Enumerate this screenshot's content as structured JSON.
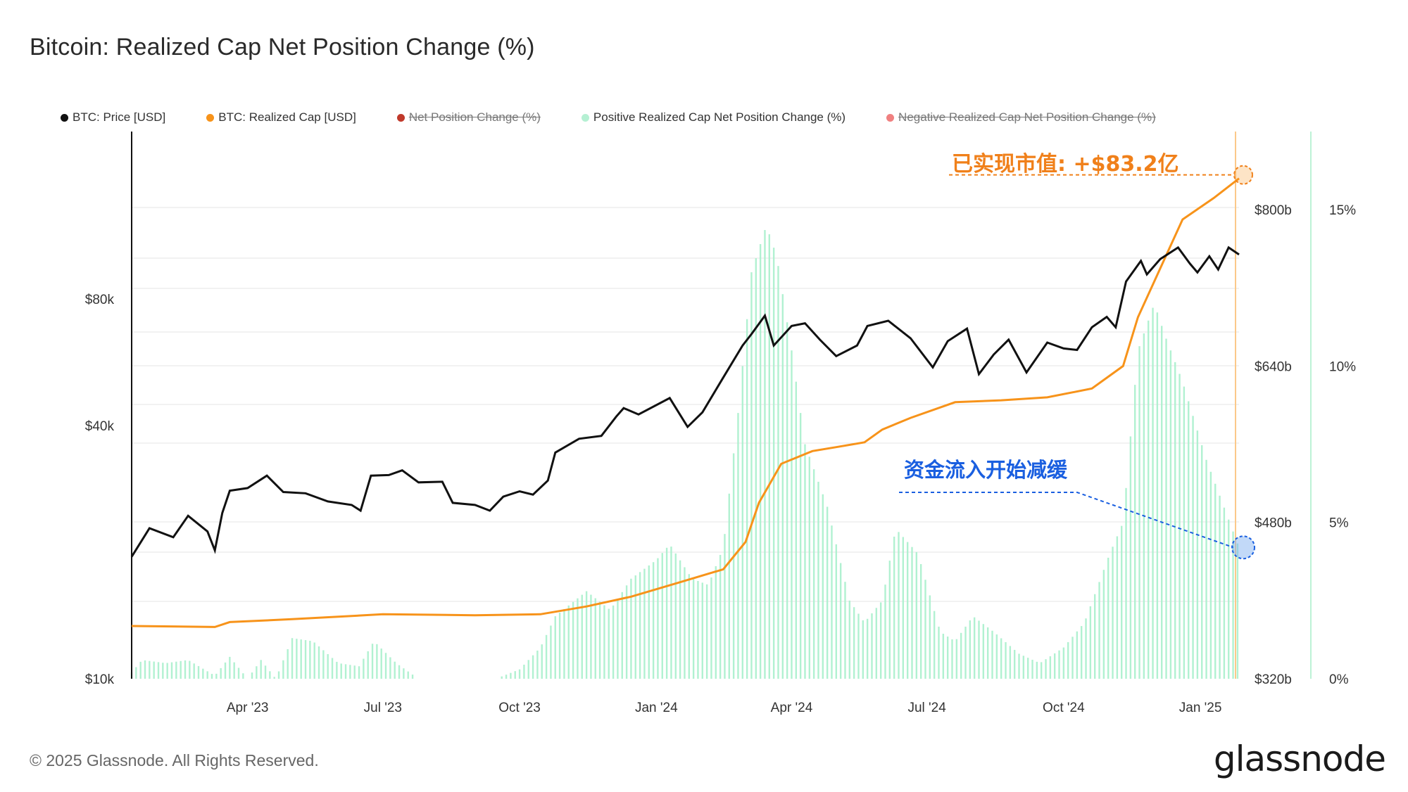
{
  "title": "Bitcoin: Realized Cap Net Position Change (%)",
  "legend": [
    {
      "label": "BTC: Price [USD]",
      "color": "#111111",
      "active": true
    },
    {
      "label": "BTC: Realized Cap [USD]",
      "color": "#f7931a",
      "active": true
    },
    {
      "label": "Net Position Change (%)",
      "color": "#c0392b",
      "active": false
    },
    {
      "label": "Positive Realized Cap Net Position Change (%)",
      "color": "#a8f0cc",
      "active": true
    },
    {
      "label": "Negative Realized Cap Net Position Change (%)",
      "color": "#f08080",
      "active": false
    }
  ],
  "annotations": {
    "realized_cap": "已实现市值: +$83.2亿",
    "inflow_slowing": "资金流入开始减缓"
  },
  "footer": "© 2025 Glassnode. All Rights Reserved.",
  "logo": "glassnode",
  "colors": {
    "price": "#111111",
    "realized_cap": "#f7931a",
    "positive_change": "#a8f0cc",
    "annotation_orange": "#f0801a",
    "annotation_blue": "#1a5fe0"
  },
  "chart_data": {
    "type": "line",
    "x_ticks": [
      "Apr '23",
      "Jul '23",
      "Oct '23",
      "Jan '24",
      "Apr '24",
      "Jul '24",
      "Oct '24",
      "Jan '25"
    ],
    "x_range": [
      "2023-01-13",
      "2025-01-27"
    ],
    "axes": {
      "price": {
        "position": "left",
        "scale": "log",
        "ticks": [
          "$10k",
          "$40k",
          "$80k"
        ],
        "range": [
          10000,
          200000
        ]
      },
      "realized_cap": {
        "position": "right",
        "scale": "linear",
        "ticks": [
          "$320b",
          "$480b",
          "$640b",
          "$800b"
        ],
        "range": [
          320,
          880
        ]
      },
      "net_change_pct": {
        "position": "far-right",
        "scale": "linear",
        "ticks": [
          "0%",
          "5%",
          "10%",
          "15%"
        ],
        "range": [
          0,
          17.5
        ]
      }
    },
    "series": [
      {
        "name": "BTC: Price [USD]",
        "axis": "price",
        "points": [
          [
            "2023-01-13",
            19500
          ],
          [
            "2023-01-25",
            22800
          ],
          [
            "2023-02-10",
            21700
          ],
          [
            "2023-02-20",
            24400
          ],
          [
            "2023-03-05",
            22400
          ],
          [
            "2023-03-10",
            20200
          ],
          [
            "2023-03-15",
            24800
          ],
          [
            "2023-03-20",
            28000
          ],
          [
            "2023-04-01",
            28400
          ],
          [
            "2023-04-14",
            30400
          ],
          [
            "2023-04-25",
            27800
          ],
          [
            "2023-05-10",
            27600
          ],
          [
            "2023-05-25",
            26400
          ],
          [
            "2023-06-10",
            25900
          ],
          [
            "2023-06-16",
            25100
          ],
          [
            "2023-06-23",
            30400
          ],
          [
            "2023-07-05",
            30500
          ],
          [
            "2023-07-14",
            31300
          ],
          [
            "2023-07-25",
            29300
          ],
          [
            "2023-08-10",
            29400
          ],
          [
            "2023-08-17",
            26200
          ],
          [
            "2023-09-01",
            25900
          ],
          [
            "2023-09-11",
            25100
          ],
          [
            "2023-09-20",
            27100
          ],
          [
            "2023-10-01",
            27900
          ],
          [
            "2023-10-10",
            27400
          ],
          [
            "2023-10-20",
            29600
          ],
          [
            "2023-10-25",
            34500
          ],
          [
            "2023-11-10",
            37200
          ],
          [
            "2023-11-25",
            37800
          ],
          [
            "2023-12-05",
            42000
          ],
          [
            "2023-12-10",
            44000
          ],
          [
            "2023-12-20",
            42500
          ],
          [
            "2024-01-10",
            46500
          ],
          [
            "2024-01-22",
            39700
          ],
          [
            "2024-02-01",
            43000
          ],
          [
            "2024-02-15",
            52000
          ],
          [
            "2024-02-28",
            62000
          ],
          [
            "2024-03-05",
            66000
          ],
          [
            "2024-03-14",
            73000
          ],
          [
            "2024-03-20",
            62000
          ],
          [
            "2024-04-01",
            69000
          ],
          [
            "2024-04-10",
            70000
          ],
          [
            "2024-04-20",
            64000
          ],
          [
            "2024-05-01",
            58500
          ],
          [
            "2024-05-15",
            62000
          ],
          [
            "2024-05-22",
            69000
          ],
          [
            "2024-06-05",
            71000
          ],
          [
            "2024-06-20",
            64500
          ],
          [
            "2024-07-05",
            55000
          ],
          [
            "2024-07-15",
            63500
          ],
          [
            "2024-07-28",
            68000
          ],
          [
            "2024-08-05",
            53000
          ],
          [
            "2024-08-15",
            59000
          ],
          [
            "2024-08-25",
            64000
          ],
          [
            "2024-09-06",
            53500
          ],
          [
            "2024-09-20",
            63000
          ],
          [
            "2024-10-01",
            61000
          ],
          [
            "2024-10-10",
            60500
          ],
          [
            "2024-10-20",
            68500
          ],
          [
            "2024-10-30",
            72500
          ],
          [
            "2024-11-05",
            68500
          ],
          [
            "2024-11-12",
            88000
          ],
          [
            "2024-11-22",
            98500
          ],
          [
            "2024-11-26",
            91500
          ],
          [
            "2024-12-05",
            99500
          ],
          [
            "2024-12-17",
            106000
          ],
          [
            "2024-12-25",
            97000
          ],
          [
            "2024-12-30",
            92500
          ],
          [
            "2025-01-07",
            101000
          ],
          [
            "2025-01-13",
            94000
          ],
          [
            "2025-01-20",
            106000
          ],
          [
            "2025-01-27",
            102000
          ]
        ]
      },
      {
        "name": "BTC: Realized Cap [USD]",
        "axis": "realized_cap",
        "points": [
          [
            "2023-01-13",
            374
          ],
          [
            "2023-03-10",
            373
          ],
          [
            "2023-03-20",
            378
          ],
          [
            "2023-05-01",
            381
          ],
          [
            "2023-07-01",
            386
          ],
          [
            "2023-09-01",
            385
          ],
          [
            "2023-10-15",
            386
          ],
          [
            "2023-11-15",
            394
          ],
          [
            "2023-12-15",
            404
          ],
          [
            "2024-01-15",
            418
          ],
          [
            "2024-02-15",
            432
          ],
          [
            "2024-03-01",
            460
          ],
          [
            "2024-03-10",
            500
          ],
          [
            "2024-03-25",
            540
          ],
          [
            "2024-04-15",
            553
          ],
          [
            "2024-05-01",
            557
          ],
          [
            "2024-05-20",
            562
          ],
          [
            "2024-06-01",
            575
          ],
          [
            "2024-06-20",
            587
          ],
          [
            "2024-07-20",
            603
          ],
          [
            "2024-08-20",
            605
          ],
          [
            "2024-09-20",
            608
          ],
          [
            "2024-10-20",
            617
          ],
          [
            "2024-11-10",
            640
          ],
          [
            "2024-11-20",
            690
          ],
          [
            "2024-12-05",
            740
          ],
          [
            "2024-12-20",
            790
          ],
          [
            "2025-01-10",
            812
          ],
          [
            "2025-01-27",
            832
          ]
        ]
      },
      {
        "name": "Positive Realized Cap Net Position Change (%)",
        "axis": "net_change_pct",
        "type": "bar",
        "points": [
          [
            "2023-01-13",
            0.2
          ],
          [
            "2023-01-20",
            0.6
          ],
          [
            "2023-02-05",
            0.5
          ],
          [
            "2023-02-20",
            0.6
          ],
          [
            "2023-03-10",
            0.1
          ],
          [
            "2023-03-20",
            0.7
          ],
          [
            "2023-04-01",
            0.0
          ],
          [
            "2023-04-10",
            0.6
          ],
          [
            "2023-04-20",
            0.0
          ],
          [
            "2023-05-01",
            1.3
          ],
          [
            "2023-05-15",
            1.2
          ],
          [
            "2023-06-01",
            0.5
          ],
          [
            "2023-06-15",
            0.4
          ],
          [
            "2023-06-25",
            1.2
          ],
          [
            "2023-07-10",
            0.5
          ],
          [
            "2023-07-25",
            0.0
          ],
          [
            "2023-09-15",
            0.0
          ],
          [
            "2023-10-01",
            0.3
          ],
          [
            "2023-10-15",
            1.0
          ],
          [
            "2023-10-25",
            2.0
          ],
          [
            "2023-11-15",
            2.8
          ],
          [
            "2023-12-01",
            2.2
          ],
          [
            "2023-12-15",
            3.2
          ],
          [
            "2024-01-01",
            3.8
          ],
          [
            "2024-01-10",
            4.3
          ],
          [
            "2024-01-25",
            3.2
          ],
          [
            "2024-02-05",
            3.0
          ],
          [
            "2024-02-15",
            4.2
          ],
          [
            "2024-02-25",
            8.5
          ],
          [
            "2024-03-05",
            13.0
          ],
          [
            "2024-03-15",
            14.5
          ],
          [
            "2024-03-22",
            13.5
          ],
          [
            "2024-04-01",
            10.5
          ],
          [
            "2024-04-10",
            7.5
          ],
          [
            "2024-04-25",
            5.5
          ],
          [
            "2024-05-10",
            2.5
          ],
          [
            "2024-05-20",
            1.8
          ],
          [
            "2024-06-01",
            2.5
          ],
          [
            "2024-06-10",
            4.8
          ],
          [
            "2024-06-25",
            4.0
          ],
          [
            "2024-07-10",
            1.5
          ],
          [
            "2024-07-20",
            1.2
          ],
          [
            "2024-08-01",
            2.0
          ],
          [
            "2024-08-15",
            1.5
          ],
          [
            "2024-09-01",
            0.8
          ],
          [
            "2024-09-15",
            0.5
          ],
          [
            "2024-10-01",
            1.0
          ],
          [
            "2024-10-15",
            1.8
          ],
          [
            "2024-11-01",
            4.0
          ],
          [
            "2024-11-10",
            5.0
          ],
          [
            "2024-11-20",
            10.5
          ],
          [
            "2024-12-01",
            12.0
          ],
          [
            "2024-12-08",
            11.0
          ],
          [
            "2024-12-20",
            9.5
          ],
          [
            "2025-01-05",
            7.0
          ],
          [
            "2025-01-27",
            4.2
          ]
        ]
      }
    ]
  }
}
